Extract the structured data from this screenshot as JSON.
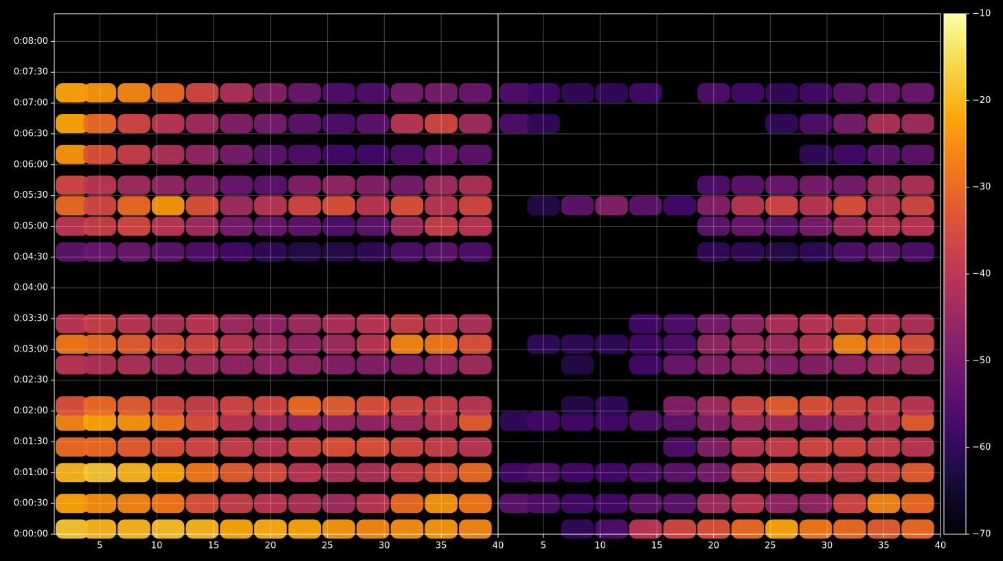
{
  "chart_data": {
    "type": "heatmap",
    "colormap": "inferno",
    "grid": true,
    "ylim": [
      0,
      507
    ],
    "yticks": [
      {
        "value": 0,
        "label": "0:00:00"
      },
      {
        "value": 30,
        "label": "0:00:30"
      },
      {
        "value": 60,
        "label": "0:01:00"
      },
      {
        "value": 90,
        "label": "0:01:30"
      },
      {
        "value": 120,
        "label": "0:02:00"
      },
      {
        "value": 150,
        "label": "0:02:30"
      },
      {
        "value": 180,
        "label": "0:03:00"
      },
      {
        "value": 210,
        "label": "0:03:30"
      },
      {
        "value": 240,
        "label": "0:04:00"
      },
      {
        "value": 270,
        "label": "0:04:30"
      },
      {
        "value": 300,
        "label": "0:05:00"
      },
      {
        "value": 330,
        "label": "0:05:30"
      },
      {
        "value": 360,
        "label": "0:06:00"
      },
      {
        "value": 390,
        "label": "0:06:30"
      },
      {
        "value": 420,
        "label": "0:07:00"
      },
      {
        "value": 450,
        "label": "0:07:30"
      },
      {
        "value": 480,
        "label": "0:08:00"
      }
    ],
    "clim": [
      -70,
      -10
    ],
    "cticks": [
      {
        "value": -10,
        "label": "−10"
      },
      {
        "value": -20,
        "label": "−20"
      },
      {
        "value": -30,
        "label": "−30"
      },
      {
        "value": -40,
        "label": "−40"
      },
      {
        "value": -50,
        "label": "−50"
      },
      {
        "value": -60,
        "label": "−60"
      },
      {
        "value": -70,
        "label": "−70"
      }
    ],
    "panels": [
      {
        "xlim": [
          1,
          40
        ],
        "xticks": [
          5,
          10,
          15,
          20,
          25,
          30,
          35,
          40
        ],
        "x": [
          2,
          5,
          8,
          11,
          14,
          17,
          20,
          23,
          26,
          29,
          32,
          35,
          38
        ],
        "y": [
          5,
          30,
          60,
          85,
          110,
          125,
          165,
          185,
          205,
          275,
          300,
          320,
          340,
          370,
          400,
          430
        ],
        "z": [
          [
            -18,
            -20,
            -20,
            -19,
            -20,
            -22,
            -21,
            -22,
            -24,
            -26,
            -25,
            -24,
            -26
          ],
          [
            -22,
            -25,
            -26,
            -28,
            -34,
            -38,
            -40,
            -42,
            -44,
            -40,
            -30,
            -24,
            -28
          ],
          [
            -20,
            -18,
            -20,
            -22,
            -28,
            -32,
            -35,
            -40,
            -42,
            -42,
            -38,
            -34,
            -30
          ],
          [
            -30,
            -30,
            -32,
            -34,
            -36,
            -38,
            -40,
            -36,
            -34,
            -34,
            -36,
            -38,
            -40
          ],
          [
            -26,
            -22,
            -24,
            -28,
            -34,
            -40,
            -44,
            -46,
            -46,
            -46,
            -44,
            -40,
            -32
          ],
          [
            -34,
            -30,
            -32,
            -36,
            -38,
            -36,
            -36,
            -30,
            -32,
            -34,
            -36,
            -38,
            -40
          ],
          [
            -40,
            -42,
            -42,
            -44,
            -44,
            -46,
            -46,
            -46,
            -48,
            -48,
            -48,
            -46,
            -44
          ],
          [
            -28,
            -30,
            -32,
            -34,
            -36,
            -40,
            -44,
            -46,
            -44,
            -40,
            -26,
            -28,
            -34
          ],
          [
            -40,
            -38,
            -40,
            -42,
            -40,
            -44,
            -46,
            -44,
            -42,
            -40,
            -38,
            -40,
            -42
          ],
          [
            -54,
            -52,
            -52,
            -54,
            -56,
            -58,
            -60,
            -62,
            -62,
            -60,
            -56,
            -54,
            -56
          ],
          [
            -40,
            -38,
            -36,
            -40,
            -44,
            -50,
            -52,
            -54,
            -56,
            -54,
            -44,
            -38,
            -40
          ],
          [
            -30,
            -36,
            -30,
            -24,
            -34,
            -44,
            -40,
            -36,
            -34,
            -40,
            -34,
            -40,
            -36
          ],
          [
            -36,
            -40,
            -44,
            -46,
            -48,
            -52,
            -54,
            -48,
            -46,
            -48,
            -50,
            -44,
            -42
          ],
          [
            -24,
            -34,
            -38,
            -42,
            -46,
            -50,
            -54,
            -56,
            -58,
            -58,
            -56,
            -52,
            -54
          ],
          [
            -22,
            -30,
            -36,
            -40,
            -44,
            -48,
            -50,
            -54,
            -56,
            -54,
            -40,
            -36,
            -44
          ],
          [
            -22,
            -24,
            -26,
            -30,
            -36,
            -42,
            -48,
            -52,
            -56,
            -56,
            -50,
            -50,
            -52
          ]
        ]
      },
      {
        "xlim": [
          1,
          40
        ],
        "xticks": [
          5,
          10,
          15,
          20,
          25,
          30,
          35,
          40
        ],
        "x": [
          2,
          5,
          8,
          11,
          14,
          17,
          20,
          23,
          26,
          29,
          32,
          35,
          38
        ],
        "y": [
          5,
          30,
          60,
          85,
          110,
          125,
          165,
          185,
          205,
          275,
          300,
          320,
          340,
          370,
          400,
          430
        ],
        "z": [
          [
            null,
            null,
            -60,
            -56,
            -40,
            -36,
            -34,
            -30,
            -22,
            -28,
            -30,
            -32,
            -30
          ],
          [
            -54,
            -56,
            -58,
            -58,
            -54,
            -54,
            -44,
            -40,
            -46,
            -46,
            -36,
            -26,
            -30
          ],
          [
            -58,
            -56,
            -58,
            -58,
            -56,
            -54,
            -50,
            -38,
            -34,
            -36,
            -38,
            -36,
            -32
          ],
          [
            null,
            null,
            null,
            null,
            null,
            -56,
            -48,
            -40,
            -38,
            -36,
            -36,
            -38,
            -40
          ],
          [
            -60,
            -58,
            -58,
            -58,
            -56,
            -54,
            -48,
            -44,
            -44,
            -46,
            -44,
            -40,
            -32
          ],
          [
            null,
            null,
            -62,
            -60,
            null,
            -48,
            -44,
            -36,
            -32,
            -34,
            -36,
            -38,
            -40
          ],
          [
            null,
            null,
            -62,
            null,
            -58,
            -52,
            -48,
            -46,
            -48,
            -48,
            -46,
            -44,
            -44
          ],
          [
            null,
            -60,
            -60,
            -60,
            -58,
            -56,
            -46,
            -44,
            -44,
            -40,
            -26,
            -28,
            -34
          ],
          [
            null,
            null,
            null,
            null,
            -58,
            -56,
            -50,
            -46,
            -42,
            -40,
            -38,
            -40,
            -42
          ],
          [
            null,
            null,
            null,
            null,
            null,
            null,
            -60,
            -60,
            -62,
            -60,
            -56,
            -54,
            -56
          ],
          [
            null,
            null,
            null,
            null,
            null,
            null,
            -54,
            -52,
            -54,
            -50,
            -44,
            -40,
            -40
          ],
          [
            null,
            -62,
            -54,
            -48,
            -54,
            -58,
            -48,
            -40,
            -36,
            -40,
            -34,
            -40,
            -36
          ],
          [
            null,
            null,
            null,
            null,
            null,
            null,
            -56,
            -54,
            -52,
            -50,
            -50,
            -44,
            -42
          ],
          [
            null,
            null,
            null,
            null,
            null,
            null,
            null,
            null,
            null,
            -60,
            -58,
            -54,
            -54
          ],
          [
            -56,
            -60,
            null,
            null,
            null,
            null,
            null,
            null,
            -60,
            -56,
            -50,
            -42,
            -44
          ],
          [
            -56,
            -58,
            -60,
            -60,
            -58,
            null,
            -56,
            -58,
            -60,
            -58,
            -54,
            -52,
            -52
          ]
        ]
      }
    ]
  }
}
